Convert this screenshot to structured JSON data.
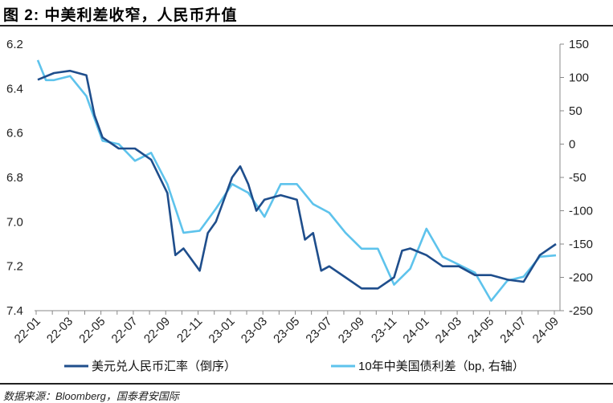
{
  "title": "图 2:  中美利差收窄，人民币升值",
  "source": "数据来源：Bloomberg，国泰君安国际",
  "chart_data": {
    "type": "line",
    "title": "图 2:  中美利差收窄，人民币升值",
    "x_ticks": [
      "22-01",
      "22-03",
      "22-05",
      "22-07",
      "22-09",
      "22-11",
      "23-01",
      "23-03",
      "23-05",
      "23-07",
      "23-09",
      "23-11",
      "24-01",
      "24-03",
      "24-05",
      "24-07",
      "24-09"
    ],
    "left_axis": {
      "ylim": [
        6.2,
        7.4
      ],
      "inverted": true,
      "ticks": [
        "6.2",
        "6.4",
        "6.6",
        "6.8",
        "7.0",
        "7.2",
        "7.4"
      ]
    },
    "right_axis": {
      "ylim": [
        -250,
        150
      ],
      "ticks": [
        "150",
        "100",
        "50",
        "0",
        "-50",
        "-100",
        "-150",
        "-200",
        "-250"
      ]
    },
    "grid": false,
    "legend_position": "bottom",
    "series": [
      {
        "name": "美元兑人民币汇率（倒序）",
        "axis": "left",
        "color": "#1f4e8c",
        "x": [
          "22-01",
          "22-02",
          "22-03",
          "22-04",
          "22-04b",
          "22-05",
          "22-06",
          "22-07",
          "22-08",
          "22-09",
          "22-09b",
          "22-10",
          "22-11",
          "22-11b",
          "22-12",
          "23-01",
          "23-01b",
          "23-02",
          "23-02b",
          "23-03",
          "23-04",
          "23-05",
          "23-05b",
          "23-06",
          "23-06b",
          "23-07",
          "23-08",
          "23-09",
          "23-10",
          "23-11",
          "23-11b",
          "23-12",
          "24-01",
          "24-02",
          "24-03",
          "24-04",
          "24-05",
          "24-06",
          "24-07",
          "24-08",
          "24-09"
        ],
        "values": [
          6.36,
          6.33,
          6.32,
          6.34,
          6.52,
          6.62,
          6.67,
          6.67,
          6.72,
          6.87,
          7.15,
          7.12,
          7.22,
          7.05,
          7.0,
          6.8,
          6.75,
          6.83,
          6.95,
          6.9,
          6.88,
          6.9,
          7.08,
          7.05,
          7.22,
          7.2,
          7.25,
          7.3,
          7.3,
          7.25,
          7.13,
          7.12,
          7.15,
          7.2,
          7.2,
          7.24,
          7.24,
          7.26,
          7.27,
          7.15,
          7.1
        ]
      },
      {
        "name": "10年中美国债利差（bp, 右轴）",
        "axis": "right",
        "color": "#5ec3ec",
        "x": [
          "22-01",
          "22-01b",
          "22-02",
          "22-03",
          "22-04",
          "22-05",
          "22-06",
          "22-07",
          "22-08",
          "22-09",
          "22-10",
          "22-11",
          "22-12",
          "23-01",
          "23-02",
          "23-03",
          "23-04",
          "23-05",
          "23-06",
          "23-07",
          "23-08",
          "23-09",
          "23-10",
          "23-11",
          "23-12",
          "24-01",
          "24-02",
          "24-03",
          "24-04",
          "24-05",
          "24-06",
          "24-07",
          "24-08",
          "24-09"
        ],
        "values": [
          126,
          96,
          96,
          102,
          72,
          5,
          0,
          -25,
          -13,
          -60,
          -133,
          -130,
          -97,
          -60,
          -73,
          -109,
          -60,
          -60,
          -90,
          -103,
          -133,
          -157,
          -157,
          -211,
          -187,
          -127,
          -169,
          -181,
          -193,
          -235,
          -205,
          -199,
          -169,
          -167
        ]
      }
    ]
  }
}
